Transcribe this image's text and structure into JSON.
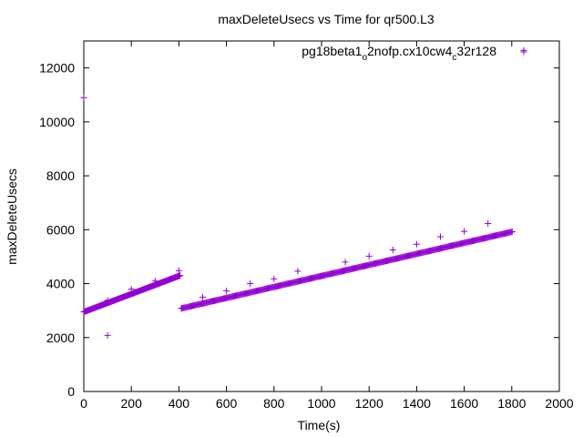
{
  "chart_data": {
    "type": "scatter",
    "title": "maxDeleteUsecs vs Time for qr500.L3",
    "xlabel": "Time(s)",
    "ylabel": "maxDeleteUsecs",
    "xlim": [
      0,
      2000
    ],
    "ylim": [
      0,
      13000
    ],
    "xticks": [
      0,
      200,
      400,
      600,
      800,
      1000,
      1200,
      1400,
      1600,
      1800,
      2000
    ],
    "yticks": [
      0,
      2000,
      4000,
      6000,
      8000,
      10000,
      12000
    ],
    "grid": false,
    "legend_position": "top-right",
    "series": [
      {
        "name_parts": [
          "pg18beta1",
          "o",
          "2nofp.cx10cw4",
          "c",
          "32r128"
        ],
        "color": "#9400d3",
        "marker": "plus",
        "segments": [
          {
            "x_start": 0,
            "x_end": 405,
            "y_start": 2950,
            "y_end": 4300,
            "step": 3
          },
          {
            "x_start": 410,
            "x_end": 1805,
            "y_start": 3080,
            "y_end": 5930,
            "step": 4
          }
        ],
        "outliers": [
          [
            0,
            10900
          ],
          [
            100,
            2080
          ],
          [
            100,
            3380
          ],
          [
            200,
            3800
          ],
          [
            300,
            4100
          ],
          [
            400,
            4480
          ],
          [
            500,
            3500
          ],
          [
            600,
            3730
          ],
          [
            700,
            4000
          ],
          [
            800,
            4180
          ],
          [
            900,
            4460
          ],
          [
            1100,
            4800
          ],
          [
            1200,
            5020
          ],
          [
            1300,
            5250
          ],
          [
            1400,
            5460
          ],
          [
            1500,
            5740
          ],
          [
            1600,
            5940
          ],
          [
            1700,
            6230
          ],
          [
            1850,
            12650
          ]
        ]
      }
    ]
  }
}
